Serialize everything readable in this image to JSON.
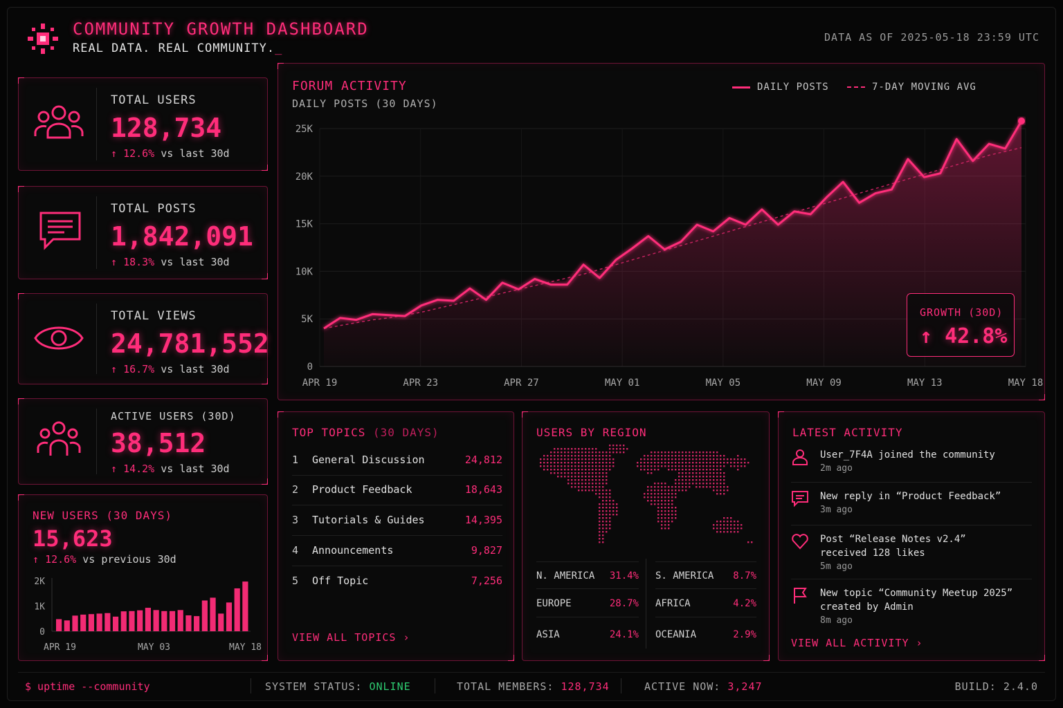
{
  "header": {
    "title": "COMMUNITY GROWTH DASHBOARD",
    "subtitle": "REAL DATA. REAL COMMUNITY.",
    "cursor": "_",
    "data_as_of": "DATA AS OF 2025-05-18 23:59 UTC"
  },
  "colors": {
    "accent": "#ff2d7a",
    "background": "#050505",
    "online": "#2ecc71"
  },
  "stats": [
    {
      "icon": "users-icon",
      "label": "TOTAL USERS",
      "value": "128,734",
      "arrow": "↑",
      "change_pct": "12.6%",
      "change_text": " vs last 30d"
    },
    {
      "icon": "chat-icon",
      "label": "TOTAL POSTS",
      "value": "1,842,091",
      "arrow": "↑",
      "change_pct": "18.3%",
      "change_text": " vs last 30d"
    },
    {
      "icon": "eye-icon",
      "label": "TOTAL VIEWS",
      "value": "24,781,552",
      "arrow": "↑",
      "change_pct": "16.7%",
      "change_text": " vs last 30d"
    },
    {
      "icon": "team-icon",
      "label": "ACTIVE USERS (30D)",
      "value": "38,512",
      "arrow": "↑",
      "change_pct": "14.2%",
      "change_text": " vs last 30d"
    }
  ],
  "forum": {
    "title": "FORUM ACTIVITY",
    "subtitle": "DAILY POSTS (30 DAYS)",
    "legend_daily": "DAILY POSTS",
    "legend_avg": "7-DAY MOVING AVG",
    "growth_label": "GROWTH (30D)",
    "growth_value": "↑ 42.8%"
  },
  "chart_data": [
    {
      "type": "line",
      "title": "FORUM ACTIVITY",
      "subtitle": "DAILY POSTS (30 DAYS)",
      "x_tick_labels": [
        "APR 19",
        "APR 23",
        "APR 27",
        "MAY 01",
        "MAY 05",
        "MAY 09",
        "MAY 13",
        "MAY 18"
      ],
      "y_tick_labels": [
        "0",
        "5K",
        "10K",
        "15K",
        "20K",
        "25K"
      ],
      "ylim": [
        0,
        25000
      ],
      "grid": true,
      "legend": "top-right",
      "series": [
        {
          "name": "DAILY POSTS",
          "style": "solid",
          "values": [
            4000,
            5100,
            4900,
            5500,
            5400,
            5300,
            6400,
            7000,
            6900,
            8200,
            7000,
            8800,
            8100,
            9200,
            8600,
            8600,
            10700,
            9300,
            11200,
            12400,
            13700,
            12300,
            13100,
            14900,
            14200,
            15600,
            14900,
            16500,
            14900,
            16300,
            16000,
            17800,
            19400,
            17200,
            18200,
            18600,
            21800,
            19900,
            20300,
            23900,
            21600,
            23400,
            22900,
            25800
          ]
        },
        {
          "name": "7-DAY MOVING AVG",
          "style": "dashed",
          "values": [
            4000,
            4300,
            4600,
            4900,
            5100,
            5400,
            5700,
            6100,
            6500,
            6900,
            7300,
            7700,
            8100,
            8500,
            8900,
            9300,
            9700,
            10200,
            10700,
            11200,
            11700,
            12200,
            12700,
            13200,
            13700,
            14200,
            14700,
            15200,
            15700,
            16200,
            16700,
            17200,
            17700,
            18200,
            18700,
            19200,
            19700,
            20200,
            20700,
            21200,
            21700,
            22200,
            22600,
            23000
          ]
        }
      ]
    },
    {
      "type": "bar",
      "title": "NEW USERS (30 DAYS)",
      "x_tick_labels": [
        "APR 19",
        "MAY 03",
        "MAY 18"
      ],
      "y_tick_labels": [
        "0",
        "1K",
        "2K"
      ],
      "ylim": [
        0,
        2000
      ],
      "values": [
        480,
        430,
        620,
        660,
        680,
        700,
        720,
        580,
        790,
        800,
        830,
        930,
        840,
        800,
        800,
        840,
        630,
        600,
        1220,
        1330,
        700,
        1140,
        1700,
        1970
      ]
    }
  ],
  "new_users": {
    "title": "NEW USERS (30 DAYS)",
    "value": "15,623",
    "arrow": "↑",
    "change_pct": "12.6%",
    "change_text": " vs previous 30d"
  },
  "topics": {
    "title": "TOP TOPICS",
    "title_dim": "(30 DAYS)",
    "items": [
      {
        "rank": "1",
        "name": "General Discussion",
        "count": "24,812"
      },
      {
        "rank": "2",
        "name": "Product Feedback",
        "count": "18,643"
      },
      {
        "rank": "3",
        "name": "Tutorials & Guides",
        "count": "14,395"
      },
      {
        "rank": "4",
        "name": "Announcements",
        "count": "9,827"
      },
      {
        "rank": "5",
        "name": "Off Topic",
        "count": "7,256"
      }
    ],
    "view_all": "VIEW ALL TOPICS ›"
  },
  "regions": {
    "title": "USERS BY REGION",
    "items": [
      {
        "name": "N. AMERICA",
        "pct": "31.4%"
      },
      {
        "name": "S. AMERICA",
        "pct": "8.7%"
      },
      {
        "name": "EUROPE",
        "pct": "28.7%"
      },
      {
        "name": "AFRICA",
        "pct": "4.2%"
      },
      {
        "name": "ASIA",
        "pct": "24.1%"
      },
      {
        "name": "OCEANIA",
        "pct": "2.9%"
      }
    ]
  },
  "activity": {
    "title": "LATEST ACTIVITY",
    "items": [
      {
        "icon": "user-icon",
        "text": "User_7F4A joined the community",
        "time": "2m ago"
      },
      {
        "icon": "reply-icon",
        "text": "New reply in “Product Feedback”",
        "time": "3m ago"
      },
      {
        "icon": "heart-icon",
        "text": "Post “Release Notes v2.4” received 128 likes",
        "time": "5m ago"
      },
      {
        "icon": "flag-icon",
        "text": "New topic “Community Meetup 2025” created by Admin",
        "time": "8m ago"
      }
    ],
    "view_all": "VIEW ALL ACTIVITY ›"
  },
  "footer": {
    "prompt": "$ uptime --community",
    "status_label": "SYSTEM STATUS: ",
    "status_value": "ONLINE",
    "members_label": "TOTAL MEMBERS: ",
    "members_value": "128,734",
    "active_label": "ACTIVE NOW: ",
    "active_value": "3,247",
    "build": "BUILD: 2.4.0"
  }
}
